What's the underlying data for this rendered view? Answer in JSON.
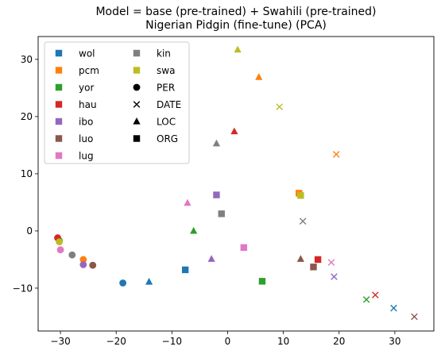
{
  "chart_data": {
    "type": "scatter",
    "title_lines": [
      "Model = base (pre-trained) + Swahili (pre-trained)",
      "Nigerian Pidgin (fine-tune) (PCA)"
    ],
    "xlabel": "",
    "ylabel": "",
    "xlim": [
      -34,
      37
    ],
    "ylim": [
      -17.5,
      34
    ],
    "xticks": [
      -30,
      -20,
      -10,
      0,
      10,
      20,
      30
    ],
    "yticks": [
      -10,
      0,
      10,
      20,
      30
    ],
    "xtick_labels": [
      "−30",
      "−20",
      "−10",
      "0",
      "10",
      "20",
      "30"
    ],
    "ytick_labels": [
      "−10",
      "0",
      "10",
      "20",
      "30"
    ],
    "grid": false,
    "legend_position": "top-left",
    "languages": [
      {
        "name": "wol",
        "color": "#1f77b4"
      },
      {
        "name": "pcm",
        "color": "#ff7f0e"
      },
      {
        "name": "yor",
        "color": "#2ca02c"
      },
      {
        "name": "hau",
        "color": "#d62728"
      },
      {
        "name": "ibo",
        "color": "#9467bd"
      },
      {
        "name": "luo",
        "color": "#8c564b"
      },
      {
        "name": "lug",
        "color": "#e377c2"
      },
      {
        "name": "kin",
        "color": "#7f7f7f"
      },
      {
        "name": "swa",
        "color": "#bcbd22"
      }
    ],
    "entity_types": [
      {
        "name": "PER",
        "marker": "circle"
      },
      {
        "name": "DATE",
        "marker": "x"
      },
      {
        "name": "LOC",
        "marker": "triangle"
      },
      {
        "name": "ORG",
        "marker": "square"
      }
    ],
    "points": [
      {
        "lang": "wol",
        "entity": "PER",
        "x": -18.8,
        "y": -9.1
      },
      {
        "lang": "wol",
        "entity": "LOC",
        "x": -14.1,
        "y": -8.9
      },
      {
        "lang": "wol",
        "entity": "ORG",
        "x": -7.6,
        "y": -6.8
      },
      {
        "lang": "wol",
        "entity": "DATE",
        "x": 29.8,
        "y": -13.5
      },
      {
        "lang": "pcm",
        "entity": "PER",
        "x": -25.9,
        "y": -5.0
      },
      {
        "lang": "pcm",
        "entity": "LOC",
        "x": 5.6,
        "y": 26.9
      },
      {
        "lang": "pcm",
        "entity": "ORG",
        "x": 12.8,
        "y": 6.6
      },
      {
        "lang": "pcm",
        "entity": "DATE",
        "x": 19.5,
        "y": 13.4
      },
      {
        "lang": "yor",
        "entity": "PER",
        "x": -30.2,
        "y": -1.7
      },
      {
        "lang": "yor",
        "entity": "LOC",
        "x": -6.1,
        "y": 0.0
      },
      {
        "lang": "yor",
        "entity": "ORG",
        "x": 6.2,
        "y": -8.8
      },
      {
        "lang": "yor",
        "entity": "DATE",
        "x": 24.9,
        "y": -12.0
      },
      {
        "lang": "hau",
        "entity": "PER",
        "x": -30.5,
        "y": -1.2
      },
      {
        "lang": "hau",
        "entity": "LOC",
        "x": 1.2,
        "y": 17.4
      },
      {
        "lang": "hau",
        "entity": "ORG",
        "x": 16.2,
        "y": -5.0
      },
      {
        "lang": "hau",
        "entity": "DATE",
        "x": 26.5,
        "y": -11.2
      },
      {
        "lang": "ibo",
        "entity": "PER",
        "x": -25.9,
        "y": -5.9
      },
      {
        "lang": "ibo",
        "entity": "LOC",
        "x": -2.9,
        "y": -4.9
      },
      {
        "lang": "ibo",
        "entity": "ORG",
        "x": -2.0,
        "y": 6.3
      },
      {
        "lang": "ibo",
        "entity": "DATE",
        "x": 19.1,
        "y": -8.0
      },
      {
        "lang": "luo",
        "entity": "PER",
        "x": -24.2,
        "y": -6.0
      },
      {
        "lang": "luo",
        "entity": "LOC",
        "x": 13.1,
        "y": -4.9
      },
      {
        "lang": "luo",
        "entity": "ORG",
        "x": 15.4,
        "y": -6.3
      },
      {
        "lang": "luo",
        "entity": "DATE",
        "x": 33.5,
        "y": -15.0
      },
      {
        "lang": "lug",
        "entity": "PER",
        "x": -30.0,
        "y": -3.3
      },
      {
        "lang": "lug",
        "entity": "LOC",
        "x": -7.2,
        "y": 4.9
      },
      {
        "lang": "lug",
        "entity": "ORG",
        "x": 2.9,
        "y": -2.9
      },
      {
        "lang": "lug",
        "entity": "DATE",
        "x": 18.6,
        "y": -5.5
      },
      {
        "lang": "kin",
        "entity": "PER",
        "x": -27.9,
        "y": -4.2
      },
      {
        "lang": "kin",
        "entity": "LOC",
        "x": -2.0,
        "y": 15.3
      },
      {
        "lang": "kin",
        "entity": "ORG",
        "x": -1.1,
        "y": 3.0
      },
      {
        "lang": "kin",
        "entity": "DATE",
        "x": 13.5,
        "y": 1.7
      },
      {
        "lang": "swa",
        "entity": "PER",
        "x": -30.2,
        "y": -1.9
      },
      {
        "lang": "swa",
        "entity": "LOC",
        "x": 1.8,
        "y": 31.7
      },
      {
        "lang": "swa",
        "entity": "ORG",
        "x": 13.1,
        "y": 6.2
      },
      {
        "lang": "swa",
        "entity": "DATE",
        "x": 9.3,
        "y": 21.7
      }
    ]
  }
}
